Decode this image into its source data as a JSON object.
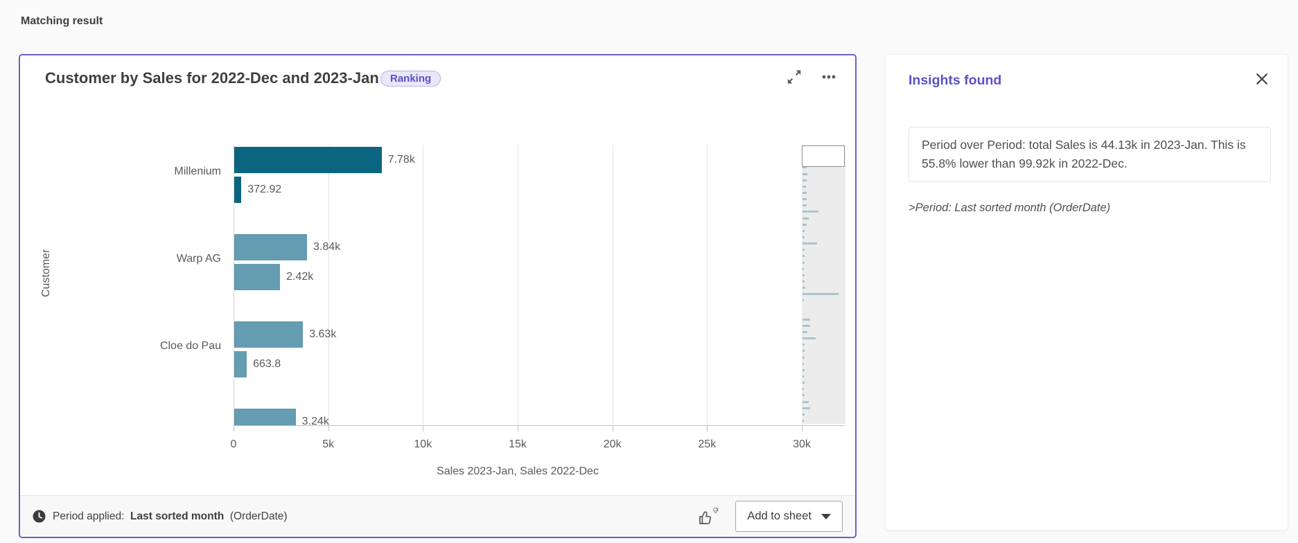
{
  "page": {
    "heading": "Matching result"
  },
  "card": {
    "title": "Customer by Sales for 2022-Dec and 2023-Jan",
    "badge": "Ranking",
    "footer": {
      "period_prefix": "Period applied:",
      "period_bold": "Last sorted month",
      "period_suffix": "(OrderDate)",
      "add_button": "Add to sheet"
    }
  },
  "chart_data": {
    "type": "bar",
    "orientation": "horizontal",
    "title": "Customer by Sales for 2022-Dec and 2023-Jan",
    "xlabel": "Sales 2023-Jan, Sales 2022-Dec",
    "ylabel": "Customer",
    "xlim": [
      0,
      30000
    ],
    "x_tick_labels": [
      "0",
      "5k",
      "10k",
      "15k",
      "20k",
      "25k",
      "30k"
    ],
    "x_tick_values": [
      0,
      5000,
      10000,
      15000,
      20000,
      25000,
      30000
    ],
    "grid": true,
    "categories": [
      "Millenium",
      "Warp AG",
      "Cloe do Pau",
      ""
    ],
    "series": [
      {
        "name": "Sales 2023-Jan",
        "values": [
          7780,
          3840,
          3630,
          3240
        ],
        "labels": [
          "7.78k",
          "3.84k",
          "3.63k",
          "3.24k"
        ]
      },
      {
        "name": "Sales 2022-Dec",
        "values": [
          372.92,
          2420,
          663.8,
          null
        ],
        "labels": [
          "372.92",
          "2.42k",
          "663.8",
          ""
        ]
      }
    ],
    "highlight_category_index": 0
  },
  "colors": {
    "accent_purple": "#5b50c8",
    "card_border": "#6a61cb",
    "bar_dark": "#0b6580",
    "bar_light": "#649cb1",
    "minimap_bar": "#a9c4d2",
    "badge_bg": "#e9e6fa"
  },
  "minimap": {
    "bar_widths_pct": [
      33,
      13,
      15,
      10,
      11,
      10,
      8,
      9,
      9,
      10,
      37,
      14,
      9,
      5,
      5,
      34,
      4,
      4,
      4,
      3,
      4,
      5,
      6,
      84,
      3,
      0,
      0,
      17,
      17,
      11,
      30,
      4,
      4,
      4,
      3,
      5,
      3,
      4,
      3,
      4,
      15,
      17,
      4,
      3
    ],
    "dark_bar_index": 0
  },
  "insights_panel": {
    "title": "Insights found",
    "insight_text": "Period over Period: total Sales is 44.13k in 2023-Jan. This is 55.8% lower than 99.92k in 2022-Dec.",
    "note": ">Period: Last sorted month (OrderDate)"
  }
}
